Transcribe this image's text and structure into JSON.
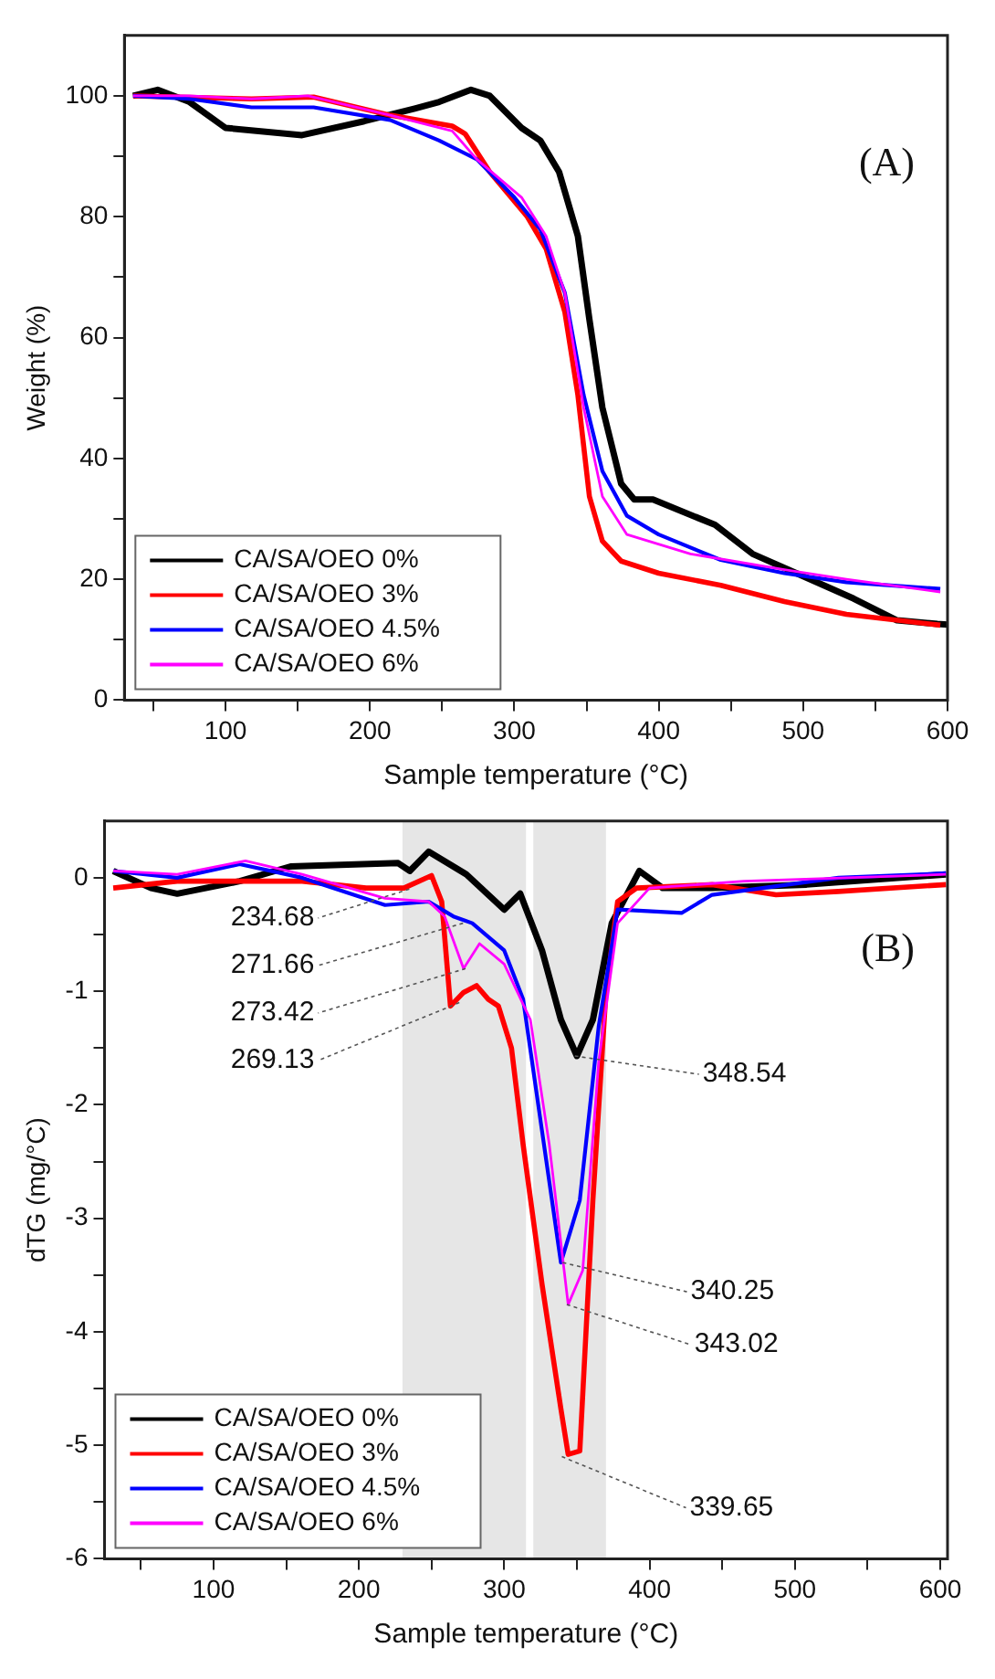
{
  "chart_data": [
    {
      "type": "line",
      "xlabel": "Sample temperature (°C)",
      "ylabel": "Weight (%)",
      "xlim": [
        30,
        600
      ],
      "ylim": [
        0,
        110
      ],
      "xticks": [
        {
          "value": 50,
          "label": null
        },
        100,
        {
          "value": 150,
          "label": null
        },
        200,
        {
          "value": 250,
          "label": null
        },
        300,
        {
          "value": 350,
          "label": null
        },
        400,
        {
          "value": 450,
          "label": null
        },
        500,
        {
          "value": 550,
          "label": null
        },
        600
      ],
      "yticks": [
        0,
        {
          "value": 10,
          "label": null
        },
        20,
        {
          "value": 30,
          "label": null
        },
        40,
        {
          "value": 50,
          "label": null
        },
        60,
        {
          "value": 70,
          "label": null
        },
        80,
        {
          "value": 90,
          "label": null
        },
        100
      ],
      "legend": "bottom left",
      "grid": false,
      "annotations": [
        "(A)"
      ],
      "series": [
        {
          "name": "CA/SA/OEO 0%",
          "color": "#000000",
          "x": [
            36,
            53,
            75,
            100,
            153,
            196,
            231,
            248,
            270,
            283,
            305,
            318,
            331,
            344,
            352,
            361,
            374,
            383,
            396,
            439,
            465,
            500,
            535,
            565,
            593,
            600
          ],
          "values": [
            100,
            101,
            99,
            94.7,
            93.5,
            95.8,
            97.9,
            99,
            101,
            100,
            94.7,
            92.6,
            87.4,
            76.8,
            63,
            48.4,
            35.8,
            33.2,
            33.2,
            29,
            24.2,
            20.5,
            16.8,
            13.2,
            12.6,
            12.5
          ]
        },
        {
          "name": "CA/SA/OEO 3%",
          "color": "#ff0000",
          "x": [
            36,
            118,
            161,
            214,
            257,
            266,
            283,
            309,
            322,
            335,
            344,
            352,
            361,
            374,
            400,
            443,
            487,
            530,
            595
          ],
          "values": [
            100,
            99.5,
            99.8,
            96.8,
            95,
            93.7,
            87.4,
            80,
            74.7,
            64.2,
            50.5,
            33.7,
            26.3,
            23,
            21,
            19,
            16.3,
            14.2,
            12.4
          ]
        },
        {
          "name": "CA/SA/OEO 4.5%",
          "color": "#0000ff",
          "x": [
            36,
            75,
            118,
            161,
            214,
            248,
            274,
            300,
            318,
            335,
            348,
            361,
            378,
            400,
            443,
            487,
            530,
            595
          ],
          "values": [
            100,
            99.5,
            98.1,
            98.1,
            96,
            92.6,
            89.5,
            83.2,
            77.9,
            67.4,
            50.5,
            37.9,
            30.5,
            27.4,
            23.2,
            21,
            19.5,
            18.4
          ]
        },
        {
          "name": "CA/SA/OEO 6%",
          "color": "#ff00ff",
          "x": [
            36,
            75,
            118,
            157,
            214,
            257,
            274,
            305,
            322,
            335,
            348,
            361,
            378,
            422,
            487,
            530,
            595
          ],
          "values": [
            100,
            100,
            99.5,
            100,
            96.8,
            94.2,
            89.5,
            83.2,
            76.8,
            67.4,
            48.4,
            33.7,
            27.4,
            24.2,
            21.6,
            20,
            17.9
          ]
        }
      ]
    },
    {
      "type": "line",
      "xlabel": "Sample temperature (°C)",
      "ylabel": "dTG (mg/°C)",
      "xlim": [
        25,
        605
      ],
      "ylim": [
        -6,
        0.5
      ],
      "xticks": [
        {
          "value": 50,
          "label": null
        },
        100,
        {
          "value": 150,
          "label": null
        },
        200,
        {
          "value": 250,
          "label": null
        },
        300,
        {
          "value": 350,
          "label": null
        },
        400,
        {
          "value": 450,
          "label": null
        },
        500,
        {
          "value": 550,
          "label": null
        },
        600
      ],
      "yticks": [
        -6,
        {
          "value": -5.5,
          "label": null
        },
        -5,
        {
          "value": -4.5,
          "label": null
        },
        -4,
        {
          "value": -3.5,
          "label": null
        },
        -3,
        {
          "value": -2.5,
          "label": null
        },
        -2,
        {
          "value": -1.5,
          "label": null
        },
        -1,
        {
          "value": -0.5,
          "label": null
        },
        0
      ],
      "legend": "bottom left",
      "grid": false,
      "bands": [
        {
          "axis": "x",
          "from": 230,
          "to": 315,
          "color": "#e6e6e6"
        },
        {
          "axis": "x",
          "from": 320,
          "to": 370,
          "color": "#e6e6e6"
        }
      ],
      "annotations": [
        "(B)",
        {
          "text": "234.68",
          "x": 234.68,
          "y": -0.1
        },
        {
          "text": "271.66",
          "x": 271.66,
          "y": -0.4
        },
        {
          "text": "273.42",
          "x": 273.42,
          "y": -0.8
        },
        {
          "text": "269.13",
          "x": 269.13,
          "y": -1.1
        },
        {
          "text": "348.54",
          "x": 348.54,
          "y": -1.57
        },
        {
          "text": "340.25",
          "x": 340.25,
          "y": -3.39
        },
        {
          "text": "343.02",
          "x": 343.02,
          "y": -3.76
        },
        {
          "text": "339.65",
          "x": 339.65,
          "y": -5.1
        }
      ],
      "series": [
        {
          "name": "CA/SA/OEO 0%",
          "color": "#000000",
          "x": [
            31,
            57,
            75,
            118,
            153,
            227,
            235,
            248,
            274,
            300,
            311,
            326,
            339,
            350,
            361,
            374,
            393,
            409,
            443,
            508,
            604
          ],
          "values": [
            0.06,
            -0.09,
            -0.14,
            -0.03,
            0.1,
            0.13,
            0.06,
            0.23,
            0.03,
            -0.28,
            -0.14,
            -0.64,
            -1.25,
            -1.57,
            -1.25,
            -0.4,
            0.06,
            -0.09,
            -0.09,
            -0.06,
            0.03
          ]
        },
        {
          "name": "CA/SA/OEO 3%",
          "color": "#ff0000",
          "x": [
            31,
            75,
            118,
            161,
            205,
            231,
            250,
            257,
            263,
            272,
            281,
            289,
            296,
            305,
            313,
            326,
            339,
            344,
            352,
            361,
            370,
            378,
            391,
            443,
            487,
            530,
            604
          ],
          "values": [
            -0.09,
            -0.03,
            -0.03,
            -0.03,
            -0.09,
            -0.09,
            0.02,
            -0.21,
            -1.13,
            -1.01,
            -0.95,
            -1.07,
            -1.13,
            -1.5,
            -2.35,
            -3.58,
            -4.68,
            -5.08,
            -5.05,
            -2.84,
            -1.01,
            -0.21,
            -0.09,
            -0.06,
            -0.15,
            -0.12,
            -0.06
          ]
        },
        {
          "name": "CA/SA/OEO 4.5%",
          "color": "#0000ff",
          "x": [
            31,
            75,
            118,
            161,
            218,
            248,
            265,
            278,
            300,
            313,
            326,
            339,
            352,
            365,
            378,
            422,
            443,
            530,
            604
          ],
          "values": [
            0.06,
            0,
            0.12,
            0,
            -0.24,
            -0.21,
            -0.34,
            -0.4,
            -0.64,
            -1.07,
            -2.23,
            -3.39,
            -2.84,
            -1.31,
            -0.28,
            -0.31,
            -0.15,
            0,
            0.04
          ]
        },
        {
          "name": "CA/SA/OEO 6%",
          "color": "#ff00ff",
          "x": [
            31,
            75,
            122,
            161,
            218,
            248,
            259,
            272,
            283,
            300,
            318,
            331,
            344,
            354,
            365,
            378,
            400,
            465,
            604
          ],
          "values": [
            0.06,
            0.03,
            0.15,
            0.03,
            -0.18,
            -0.21,
            -0.34,
            -0.8,
            -0.58,
            -0.76,
            -1.25,
            -2.35,
            -3.76,
            -3.46,
            -1.62,
            -0.4,
            -0.09,
            -0.03,
            0.03
          ]
        }
      ]
    }
  ]
}
